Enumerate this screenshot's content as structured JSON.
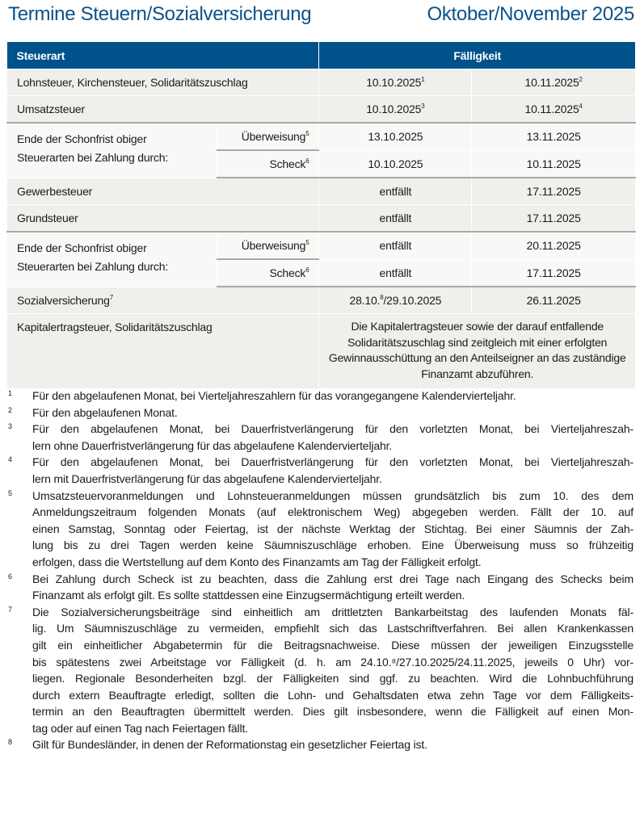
{
  "title": "Termine Steuern/Sozialversicherung",
  "period": "Oktober/November 2025",
  "colors": {
    "header": "#00528a",
    "title": "#0a5289",
    "row": "#f0efec",
    "row_light": "#f9f8f6"
  },
  "table": {
    "headers": {
      "steuerart": "Steuerart",
      "faelligkeit": "Fälligkeit"
    },
    "rows": [
      {
        "label": "Lohnsteuer, Kirchensteuer, Solidaritätszuschlag",
        "d1": "10.10.2025",
        "s1": "1",
        "d2": "10.11.2025",
        "s2": "2"
      },
      {
        "label": "Umsatzsteuer",
        "d1": "10.10.2025",
        "s1": "3",
        "d2": "10.11.2025",
        "s2": "4"
      },
      {
        "label": "Ende der Schonfrist obiger Steuerarten bei Zahlung durch:",
        "sub1": "Überweisung",
        "sub1n": "5",
        "a1": "13.10.2025",
        "a2": "13.11.2025",
        "sub2": "Scheck",
        "sub2n": "6",
        "b1": "10.10.2025",
        "b2": "10.11.2025"
      },
      {
        "label": "Gewerbesteuer",
        "d1": "entfällt",
        "d2": "17.11.2025"
      },
      {
        "label": "Grundsteuer",
        "d1": "entfällt",
        "d2": "17.11.2025"
      },
      {
        "label": "Ende der Schonfrist obiger Steuerarten bei Zahlung durch:",
        "sub1": "Überweisung",
        "sub1n": "5",
        "a1": "entfällt",
        "a2": "20.11.2025",
        "sub2": "Scheck",
        "sub2n": "6",
        "b1": "entfällt",
        "b2": "17.11.2025"
      },
      {
        "label": "Sozialversicherung",
        "ln": "7",
        "d1a": "28.10.",
        "d1n": "8",
        "d1b": "/29.10.2025",
        "d2": "26.11.2025"
      },
      {
        "label": "Kapitalertragsteuer, Solidaritätszuschlag",
        "text": "Die Kapitalertragsteuer sowie der darauf entfallende Solidaritätszuschlag sind zeitgleich mit einer erfolgten Gewinnausschüttung an den Anteilseigner an das zuständige Finanzamt abzuführen."
      }
    ]
  },
  "footnotes": [
    {
      "n": "1",
      "lines": [
        "Für den abgelaufenen Monat, bei Vierteljahreszahlern für das vorangegangene Kalendervierteljahr."
      ]
    },
    {
      "n": "2",
      "lines": [
        "Für den abgelaufenen Monat."
      ]
    },
    {
      "n": "3",
      "lines": [
        "Für den abgelaufenen Monat, bei Dauerfristverlängerung für den vorletzten Monat, bei Vierteljahreszah-",
        "lern ohne Dauerfristverlängerung für das abgelaufene Kalendervierteljahr."
      ]
    },
    {
      "n": "4",
      "lines": [
        "Für den abgelaufenen Monat, bei Dauerfristverlängerung für den vorletzten Monat, bei Vierteljahreszah-",
        "lern mit Dauerfristverlängerung für das abgelaufene Kalendervierteljahr."
      ]
    },
    {
      "n": "5",
      "lines": [
        "Umsatzsteuervoranmeldungen und Lohnsteueranmeldungen müssen grundsätzlich bis zum 10. des dem",
        "Anmeldungszeitraum folgenden Monats (auf elektronischem Weg) abgegeben werden. Fällt der 10. auf",
        "einen Samstag, Sonntag oder Feiertag, ist der nächste Werktag der Stichtag. Bei einer Säumnis der Zah-",
        "lung bis zu drei Tagen werden keine Säumniszuschläge erhoben. Eine Überweisung muss so frühzeitig",
        "erfolgen, dass die Wertstellung auf dem Konto des Finanzamts am Tag der Fälligkeit erfolgt."
      ]
    },
    {
      "n": "6",
      "lines": [
        "Bei Zahlung durch Scheck ist zu beachten, dass die Zahlung erst drei Tage nach Eingang des Schecks beim",
        "Finanzamt als erfolgt gilt. Es sollte stattdessen eine Einzugsermächtigung erteilt werden."
      ]
    },
    {
      "n": "7",
      "lines": [
        "Die Sozialversicherungsbeiträge sind einheitlich am drittletzten Bankarbeitstag des laufenden Monats fäl-",
        "lig. Um Säumniszuschläge zu vermeiden, empfiehlt sich das Lastschriftverfahren. Bei allen Krankenkassen",
        "gilt ein einheitlicher Abgabetermin für die Beitragsnachweise. Diese müssen der jeweiligen Einzugsstelle",
        "bis spätestens zwei Arbeitstage vor Fälligkeit (d. h. am 24.10.⁸/27.10.2025/24.11.2025, jeweils 0 Uhr) vor-",
        "liegen. Regionale Besonderheiten bzgl. der Fälligkeiten sind ggf. zu beachten. Wird die Lohnbuchführung",
        "durch extern Beauftragte erledigt, sollten die Lohn- und Gehaltsdaten etwa zehn Tage vor dem Fälligkeits-",
        "termin an den Beauftragten übermittelt werden. Dies gilt insbesondere, wenn die Fälligkeit auf einen Mon-",
        "tag oder auf einen Tag nach Feiertagen fällt."
      ]
    },
    {
      "n": "8",
      "lines": [
        "Gilt für Bundesländer, in denen der Reformationstag ein gesetzlicher Feiertag ist."
      ]
    }
  ]
}
